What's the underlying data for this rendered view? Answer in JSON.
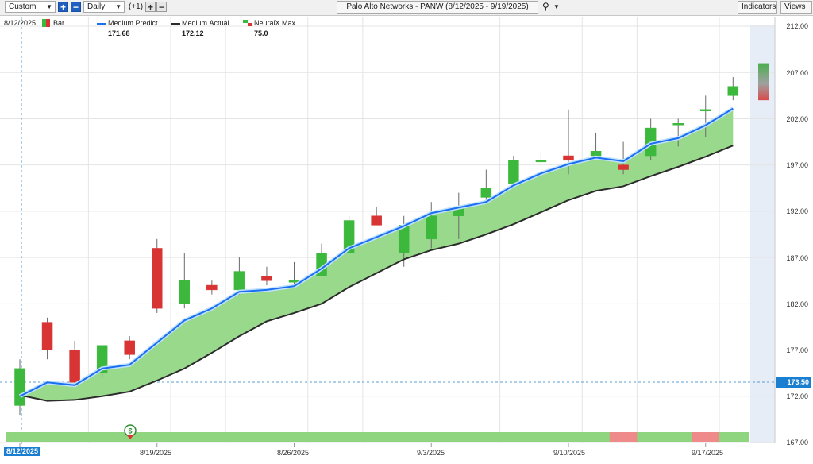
{
  "toolbar": {
    "preset_value": "Custom",
    "add_symbol": "+",
    "remove_symbol": "−",
    "interval_value": "Daily",
    "compare_label": "(+1)",
    "add_compare": "+",
    "remove_compare": "−",
    "symbol_title": "Palo Alto Networks - PANW (8/12/2025 - 9/19/2025)",
    "indicators_label": "Indicators",
    "views_label": "Views"
  },
  "legend": {
    "date": "8/12/2025",
    "bar_label": "Bar",
    "predict_label": "Medium.Predict",
    "predict_value": "171.68",
    "actual_label": "Medium.Actual",
    "actual_value": "172.12",
    "neural_label": "NeuralX.Max",
    "neural_value": "75.0"
  },
  "price_marker": "173.50",
  "date_marker": "8/12/2025",
  "signal_marker": "$",
  "colors": {
    "up_candle": "#3cb93c",
    "down_candle": "#d93434",
    "predict_line": "#1a6ff0",
    "actual_line": "#2b2b2b",
    "band_fill": "#99d98c",
    "forecast_bg": "#e7edf6",
    "neural_good": "#8fd47f",
    "neural_bad": "#ee8a8a",
    "price_badge": "#1a7fd1"
  },
  "chart_data": {
    "type": "candlestick",
    "y_axis_ticks": [
      "212.00",
      "207.00",
      "202.00",
      "197.00",
      "192.00",
      "187.00",
      "182.00",
      "177.00",
      "172.00",
      "167.00"
    ],
    "ylim": [
      167,
      212
    ],
    "x_axis_ticks": [
      "8/19/2025",
      "8/26/2025",
      "9/3/2025",
      "9/10/2025",
      "9/17/2025"
    ],
    "candles": [
      {
        "o": 171,
        "h": 176,
        "l": 170,
        "c": 175
      },
      {
        "o": 180,
        "h": 180.5,
        "l": 176,
        "c": 177
      },
      {
        "o": 177,
        "h": 178,
        "l": 173,
        "c": 173.5
      },
      {
        "o": 174.5,
        "h": 177.5,
        "l": 174,
        "c": 177.5
      },
      {
        "o": 178,
        "h": 178.5,
        "l": 176,
        "c": 176.5
      },
      {
        "o": 188,
        "h": 189,
        "l": 181,
        "c": 181.5
      },
      {
        "o": 182,
        "h": 187.5,
        "l": 181.5,
        "c": 184.5
      },
      {
        "o": 184,
        "h": 184.5,
        "l": 183,
        "c": 183.5
      },
      {
        "o": 183.5,
        "h": 187,
        "l": 183,
        "c": 185.5
      },
      {
        "o": 185,
        "h": 186,
        "l": 184,
        "c": 184.5
      },
      {
        "o": 184.5,
        "h": 186.5,
        "l": 184,
        "c": 184.5
      },
      {
        "o": 185,
        "h": 188.5,
        "l": 185,
        "c": 187.5
      },
      {
        "o": 187.5,
        "h": 191.5,
        "l": 187.5,
        "c": 191
      },
      {
        "o": 191.5,
        "h": 192.5,
        "l": 190.5,
        "c": 190.5
      },
      {
        "o": 187.5,
        "h": 191.5,
        "l": 186,
        "c": 190.5
      },
      {
        "o": 189,
        "h": 193,
        "l": 188,
        "c": 191.5
      },
      {
        "o": 191.5,
        "h": 194,
        "l": 189,
        "c": 192.5
      },
      {
        "o": 193.5,
        "h": 196.5,
        "l": 193,
        "c": 194.5
      },
      {
        "o": 195,
        "h": 198,
        "l": 195,
        "c": 197.5
      },
      {
        "o": 197.5,
        "h": 198.5,
        "l": 197,
        "c": 197.5
      },
      {
        "o": 198,
        "h": 203,
        "l": 196,
        "c": 197.5
      },
      {
        "o": 198,
        "h": 200.5,
        "l": 198,
        "c": 198.5
      },
      {
        "o": 197,
        "h": 199.5,
        "l": 196,
        "c": 196.5
      },
      {
        "o": 198,
        "h": 202,
        "l": 197.5,
        "c": 201
      },
      {
        "o": 201.5,
        "h": 202,
        "l": 199,
        "c": 201.5
      },
      {
        "o": 203,
        "h": 204.5,
        "l": 200,
        "c": 203
      },
      {
        "o": 204.5,
        "h": 206.5,
        "l": 204,
        "c": 205.5
      }
    ],
    "series": [
      {
        "name": "Medium.Predict",
        "values": [
          172,
          173.5,
          173.2,
          175,
          175.4,
          177.8,
          180.2,
          181.5,
          183.3,
          183.5,
          183.9,
          185.8,
          188,
          189.2,
          190.4,
          191.8,
          192.4,
          193,
          194.8,
          196.1,
          197.1,
          197.8,
          197.4,
          199.3,
          199.9,
          201.3,
          203.1
        ]
      },
      {
        "name": "Medium.Actual",
        "values": [
          172.12,
          171.5,
          171.6,
          172,
          172.5,
          173.7,
          175,
          176.7,
          178.5,
          180.1,
          181,
          182,
          183.8,
          185.3,
          186.8,
          187.8,
          188.5,
          189.5,
          190.6,
          191.9,
          193.2,
          194.2,
          194.7,
          195.8,
          196.8,
          197.9,
          199.1
        ]
      },
      {
        "name": "NeuralX.Max",
        "values": [
          "good",
          "good",
          "good",
          "good",
          "good",
          "good",
          "good",
          "good",
          "good",
          "good",
          "good",
          "good",
          "good",
          "good",
          "good",
          "good",
          "good",
          "good",
          "good",
          "good",
          "good",
          "good",
          "bad",
          "good",
          "good",
          "bad",
          "good"
        ]
      }
    ],
    "forecast": {
      "high": 208,
      "low": 204
    }
  }
}
